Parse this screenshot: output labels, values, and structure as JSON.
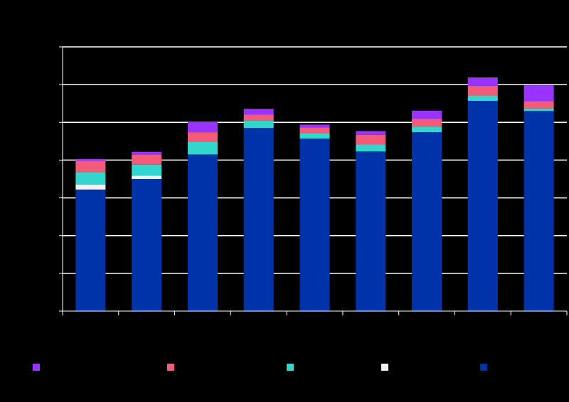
{
  "chart_data": {
    "type": "bar",
    "stacked": true,
    "categories": [
      "",
      "",
      "",
      "",
      "",
      "",
      "",
      "",
      ""
    ],
    "ylim": [
      0,
      7
    ],
    "grid": true,
    "legend_position": "bottom",
    "series": [
      {
        "color": "#0033AA",
        "values": [
          3.22,
          3.5,
          4.15,
          4.85,
          4.57,
          4.23,
          4.74,
          5.57,
          5.3
        ]
      },
      {
        "color": "#F0F0FF",
        "values": [
          0.13,
          0.09,
          0.0,
          0.0,
          0.0,
          0.0,
          0.0,
          0.0,
          0.0
        ]
      },
      {
        "color": "#33D6CC",
        "values": [
          0.33,
          0.29,
          0.34,
          0.2,
          0.15,
          0.19,
          0.15,
          0.14,
          0.07
        ]
      },
      {
        "color": "#F25C7A",
        "values": [
          0.3,
          0.26,
          0.25,
          0.16,
          0.15,
          0.25,
          0.2,
          0.26,
          0.19
        ]
      },
      {
        "color": "#9933FF",
        "values": [
          0.05,
          0.08,
          0.27,
          0.15,
          0.07,
          0.1,
          0.22,
          0.22,
          0.42
        ]
      }
    ]
  }
}
